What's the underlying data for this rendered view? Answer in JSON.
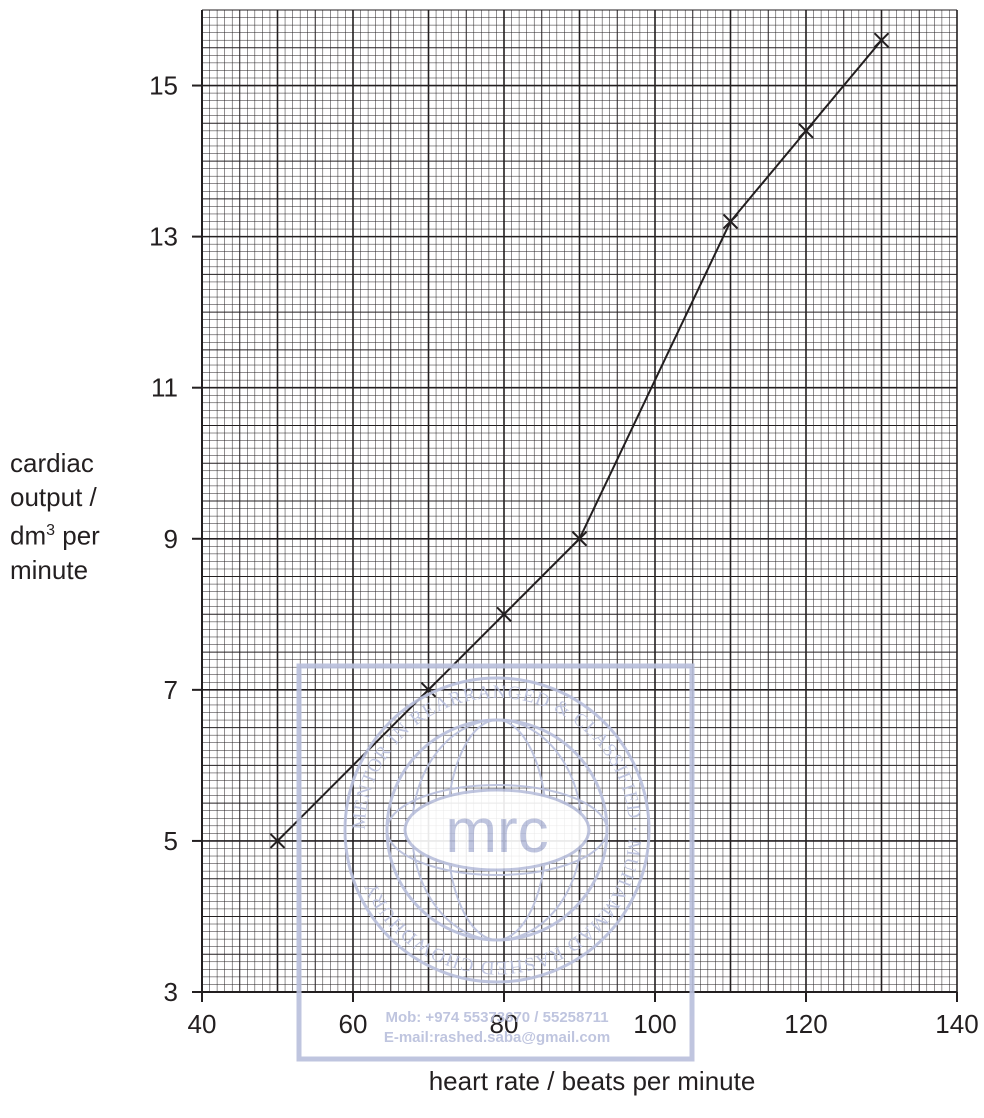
{
  "chart_data": {
    "type": "line",
    "xlabel": "heart rate / beats per minute",
    "ylabel_lines": [
      "cardiac",
      "output /",
      "dm",
      "per",
      "minute"
    ],
    "ylabel_superscript": "3",
    "xlim": [
      40,
      140
    ],
    "ylim": [
      3,
      16
    ],
    "x_ticks": [
      40,
      60,
      80,
      100,
      120,
      140
    ],
    "y_ticks": [
      3,
      5,
      7,
      9,
      11,
      13,
      15
    ],
    "grid": true,
    "series": [
      {
        "x": [
          50,
          70,
          80,
          90,
          110,
          120,
          130
        ],
        "y": [
          5,
          7,
          8,
          9,
          13.2,
          14.4,
          15.6
        ],
        "marker": "x",
        "color": "#231f20"
      }
    ]
  },
  "watermark": {
    "center_text": "mrc",
    "ring_text": "MENTOR IN REARRANGED & CLASSIFIED · MUHAMMAD RASHED CHOWDHURY",
    "mobile": "Mob:  +974 55373670 / 55258711",
    "email": "E-mail:rashed.saba@gmail.com",
    "color": "#b9bfdc"
  }
}
